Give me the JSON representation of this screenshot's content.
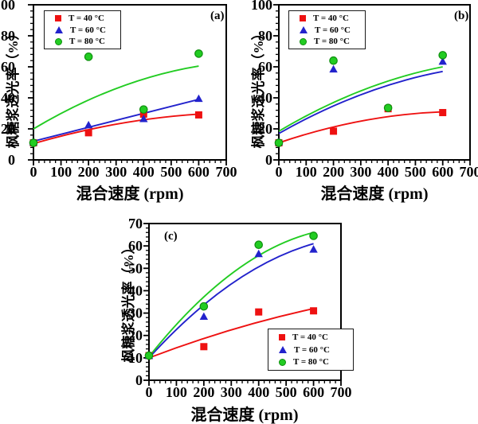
{
  "figure": {
    "background": "#ffffff",
    "axis_color": "#000000",
    "series_colors": {
      "t40": "#ee1111",
      "t60": "#2222cc",
      "t80": "#22cc22"
    },
    "green_marker_edge": "#0e8f0e"
  },
  "chart_data": [
    {
      "id": "a",
      "type": "scatter",
      "panel_label": "(a)",
      "xlabel": "混合速度 (rpm)",
      "ylabel": "枫糖浆透光率（%）",
      "xlim": [
        0,
        700
      ],
      "ylim": [
        0,
        100
      ],
      "xticks": [
        0,
        100,
        200,
        300,
        400,
        500,
        600,
        700
      ],
      "yticks": [
        0,
        20,
        40,
        60,
        80,
        100
      ],
      "x_minor_step": 20,
      "y_minor_step": 4,
      "grid": false,
      "legend_position": "top-left",
      "series": [
        {
          "name": "T = 40 °C",
          "marker": "square",
          "color": "#ee1111",
          "points": [
            [
              0,
              11
            ],
            [
              200,
              17.5
            ],
            [
              400,
              29.5
            ],
            [
              600,
              29
            ]
          ],
          "fit": {
            "start": [
              0,
              10.5
            ],
            "mid": [
              300,
              23
            ],
            "end": [
              600,
              29.5
            ]
          }
        },
        {
          "name": "T = 60 °C",
          "marker": "triangle",
          "color": "#2222cc",
          "points": [
            [
              0,
              11.5
            ],
            [
              200,
              22.5
            ],
            [
              400,
              26.5
            ],
            [
              600,
              39.5
            ]
          ],
          "fit": {
            "start": [
              0,
              12
            ],
            "mid": [
              300,
              25.5
            ],
            "end": [
              600,
              39
            ]
          }
        },
        {
          "name": "T = 80 °C",
          "marker": "circle",
          "color": "#22cc22",
          "points": [
            [
              0,
              11
            ],
            [
              200,
              66.5
            ],
            [
              400,
              32.5
            ],
            [
              600,
              68.5
            ]
          ],
          "fit": {
            "start": [
              0,
              20
            ],
            "mid": [
              300,
              46
            ],
            "end": [
              600,
              60.5
            ]
          }
        }
      ]
    },
    {
      "id": "b",
      "type": "scatter",
      "panel_label": "(b)",
      "xlabel": "混合速度 (rpm)",
      "ylabel": "枫糖浆透光率（%）",
      "xlim": [
        0,
        700
      ],
      "ylim": [
        0,
        100
      ],
      "xticks": [
        0,
        100,
        200,
        300,
        400,
        500,
        600,
        700
      ],
      "yticks": [
        0,
        20,
        40,
        60,
        80,
        100
      ],
      "x_minor_step": 20,
      "y_minor_step": 4,
      "grid": false,
      "legend_position": "top-left",
      "series": [
        {
          "name": "T = 40 °C",
          "marker": "square",
          "color": "#ee1111",
          "points": [
            [
              0,
              11
            ],
            [
              200,
              18.5
            ],
            [
              400,
              33
            ],
            [
              600,
              30.5
            ]
          ],
          "fit": {
            "start": [
              0,
              11
            ],
            "mid": [
              300,
              25
            ],
            "end": [
              600,
              31
            ]
          }
        },
        {
          "name": "T = 60 °C",
          "marker": "triangle",
          "color": "#2222cc",
          "points": [
            [
              0,
              11.5
            ],
            [
              200,
              58.5
            ],
            [
              600,
              63.5
            ]
          ],
          "fit": {
            "start": [
              0,
              17
            ],
            "mid": [
              300,
              42
            ],
            "end": [
              600,
              57
            ]
          }
        },
        {
          "name": "T = 80 °C",
          "marker": "circle",
          "color": "#22cc22",
          "points": [
            [
              0,
              11
            ],
            [
              200,
              64
            ],
            [
              400,
              33.5
            ],
            [
              600,
              67.5
            ]
          ],
          "fit": {
            "start": [
              0,
              18.5
            ],
            "mid": [
              300,
              44.5
            ],
            "end": [
              600,
              60
            ]
          }
        }
      ]
    },
    {
      "id": "c",
      "type": "scatter",
      "panel_label": "(c)",
      "xlabel": "混合速度 (rpm)",
      "ylabel": "枫糖浆透光率（%）",
      "xlim": [
        0,
        700
      ],
      "ylim": [
        0,
        70
      ],
      "xticks": [
        0,
        100,
        200,
        300,
        400,
        500,
        600,
        700
      ],
      "yticks": [
        0,
        10,
        20,
        30,
        40,
        50,
        60,
        70
      ],
      "x_minor_step": 20,
      "y_minor_step": 2,
      "grid": false,
      "legend_position": "bottom-right",
      "series": [
        {
          "name": "T = 40 °C",
          "marker": "square",
          "color": "#ee1111",
          "points": [
            [
              0,
              11
            ],
            [
              200,
              15
            ],
            [
              400,
              30.5
            ],
            [
              600,
              31
            ]
          ],
          "fit": {
            "start": [
              0,
              10
            ],
            "mid": [
              300,
              22.5
            ],
            "end": [
              600,
              32
            ]
          }
        },
        {
          "name": "T = 60 °C",
          "marker": "triangle",
          "color": "#2222cc",
          "points": [
            [
              0,
              11
            ],
            [
              200,
              28.5
            ],
            [
              400,
              56.5
            ],
            [
              600,
              58.5
            ]
          ],
          "fit": {
            "start": [
              0,
              10
            ],
            "mid": [
              300,
              43
            ],
            "end": [
              600,
              61
            ]
          }
        },
        {
          "name": "T = 80 °C",
          "marker": "circle",
          "color": "#22cc22",
          "points": [
            [
              0,
              11
            ],
            [
              200,
              33
            ],
            [
              400,
              60.5
            ],
            [
              600,
              64.5
            ]
          ],
          "fit": {
            "start": [
              0,
              10.5
            ],
            "mid": [
              300,
              47.5
            ],
            "end": [
              600,
              66
            ]
          }
        }
      ]
    }
  ]
}
